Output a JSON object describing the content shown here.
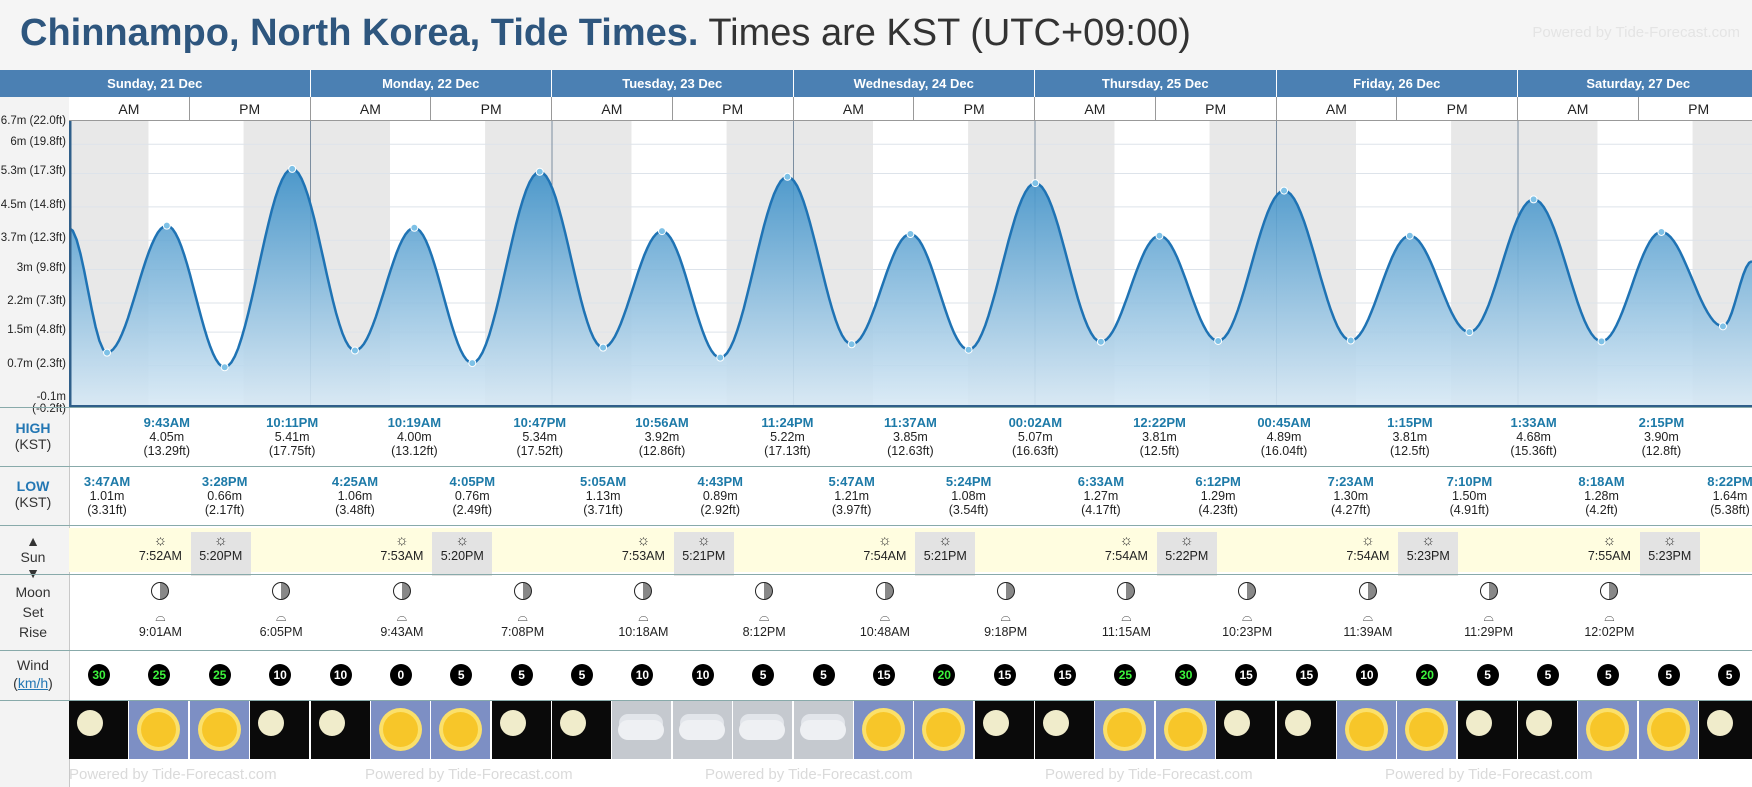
{
  "title": {
    "place": "Chinnampo, North Korea, Tide Times.",
    "tz": " Times are KST (UTC+09:00)"
  },
  "powered_by": "Powered by Tide-Forecast.com",
  "days": [
    "Sunday, 21 Dec",
    "Monday, 22 Dec",
    "Tuesday, 23 Dec",
    "Wednesday, 24 Dec",
    "Thursday, 25 Dec",
    "Friday, 26 Dec",
    "Saturday, 27 Dec"
  ],
  "ampm": {
    "am": "AM",
    "pm": "PM"
  },
  "y_axis": [
    "6.7m (22.0ft)",
    "6m (19.8ft)",
    "5.3m (17.3ft)",
    "4.5m (14.8ft)",
    "3.7m (12.3ft)",
    "3m (9.8ft)",
    "2.2m (7.3ft)",
    "1.5m (4.8ft)",
    "0.7m (2.3ft)",
    "-0.1m (-0.2ft)"
  ],
  "labels": {
    "high": "HIGH",
    "high_tz": "(KST)",
    "low": "LOW",
    "low_tz": "(KST)",
    "sun": "Sun",
    "moon": "Moon",
    "set": "Set",
    "rise": "Rise",
    "wind": "Wind",
    "wind_unit": "km/h"
  },
  "highs": [
    {
      "t": "9:43AM",
      "m": "4.05m",
      "ft": "(13.29ft)"
    },
    {
      "t": "10:11PM",
      "m": "5.41m",
      "ft": "(17.75ft)"
    },
    {
      "t": "10:19AM",
      "m": "4.00m",
      "ft": "(13.12ft)"
    },
    {
      "t": "10:47PM",
      "m": "5.34m",
      "ft": "(17.52ft)"
    },
    {
      "t": "10:56AM",
      "m": "3.92m",
      "ft": "(12.86ft)"
    },
    {
      "t": "11:24PM",
      "m": "5.22m",
      "ft": "(17.13ft)"
    },
    {
      "t": "11:37AM",
      "m": "3.85m",
      "ft": "(12.63ft)"
    },
    {
      "t": "00:02AM",
      "m": "5.07m",
      "ft": "(16.63ft)"
    },
    {
      "t": "12:22PM",
      "m": "3.81m",
      "ft": "(12.5ft)"
    },
    {
      "t": "00:45AM",
      "m": "4.89m",
      "ft": "(16.04ft)"
    },
    {
      "t": "1:15PM",
      "m": "3.81m",
      "ft": "(12.5ft)"
    },
    {
      "t": "1:33AM",
      "m": "4.68m",
      "ft": "(15.36ft)"
    },
    {
      "t": "2:15PM",
      "m": "3.90m",
      "ft": "(12.8ft)"
    }
  ],
  "lows": [
    {
      "t": "3:47AM",
      "m": "1.01m",
      "ft": "(3.31ft)"
    },
    {
      "t": "3:28PM",
      "m": "0.66m",
      "ft": "(2.17ft)"
    },
    {
      "t": "4:25AM",
      "m": "1.06m",
      "ft": "(3.48ft)"
    },
    {
      "t": "4:05PM",
      "m": "0.76m",
      "ft": "(2.49ft)"
    },
    {
      "t": "5:05AM",
      "m": "1.13m",
      "ft": "(3.71ft)"
    },
    {
      "t": "4:43PM",
      "m": "0.89m",
      "ft": "(2.92ft)"
    },
    {
      "t": "5:47AM",
      "m": "1.21m",
      "ft": "(3.97ft)"
    },
    {
      "t": "5:24PM",
      "m": "1.08m",
      "ft": "(3.54ft)"
    },
    {
      "t": "6:33AM",
      "m": "1.27m",
      "ft": "(4.17ft)"
    },
    {
      "t": "6:12PM",
      "m": "1.29m",
      "ft": "(4.23ft)"
    },
    {
      "t": "7:23AM",
      "m": "1.30m",
      "ft": "(4.27ft)"
    },
    {
      "t": "7:10PM",
      "m": "1.50m",
      "ft": "(4.91ft)"
    },
    {
      "t": "8:18AM",
      "m": "1.28m",
      "ft": "(4.2ft)"
    },
    {
      "t": "8:22PM",
      "m": "1.64m",
      "ft": "(5.38ft)"
    }
  ],
  "sun": [
    {
      "rise": "7:52AM",
      "set": "5:20PM"
    },
    {
      "rise": "7:53AM",
      "set": "5:20PM"
    },
    {
      "rise": "7:53AM",
      "set": "5:21PM"
    },
    {
      "rise": "7:54AM",
      "set": "5:21PM"
    },
    {
      "rise": "7:54AM",
      "set": "5:22PM"
    },
    {
      "rise": "7:54AM",
      "set": "5:23PM"
    },
    {
      "rise": "7:55AM",
      "set": "5:23PM"
    }
  ],
  "moon": [
    "9:01AM",
    "6:05PM",
    "9:43AM",
    "7:08PM",
    "10:18AM",
    "8:12PM",
    "10:48AM",
    "9:18PM",
    "11:15AM",
    "10:23PM",
    "11:39AM",
    "11:29PM",
    "12:02PM"
  ],
  "wind": [
    "30",
    "25",
    "25",
    "10",
    "10",
    "0",
    "5",
    "5",
    "5",
    "10",
    "10",
    "5",
    "5",
    "15",
    "20",
    "15",
    "15",
    "25",
    "30",
    "15",
    "15",
    "10",
    "20",
    "5",
    "5",
    "5",
    "5",
    "5"
  ],
  "weather": [
    "night",
    "day",
    "day",
    "night",
    "night",
    "day",
    "day",
    "night",
    "night",
    "cloud",
    "cloud",
    "cloud",
    "cloud",
    "day",
    "day",
    "night",
    "night",
    "day",
    "day",
    "night",
    "night",
    "day",
    "day",
    "night",
    "night",
    "day",
    "day",
    "night"
  ],
  "chart_data": {
    "type": "area",
    "title": "Chinnampo, North Korea, Tide Times.",
    "ylabel": "",
    "ylim": [
      -0.1,
      6.7
    ],
    "y_unit": "m",
    "series": [
      {
        "x": [
          "Sun 3:47AM",
          "Sun 9:43AM",
          "Sun 3:28PM",
          "Sun 10:11PM",
          "Mon 4:25AM",
          "Mon 10:19AM",
          "Mon 4:05PM",
          "Mon 10:47PM",
          "Tue 5:05AM",
          "Tue 10:56AM",
          "Tue 4:43PM",
          "Tue 11:24PM",
          "Wed 5:47AM",
          "Wed 11:37AM",
          "Wed 5:24PM",
          "Thu 00:02AM",
          "Thu 6:33AM",
          "Thu 12:22PM",
          "Thu 6:12PM",
          "Fri 00:45AM",
          "Fri 7:23AM",
          "Fri 1:15PM",
          "Fri 7:10PM",
          "Sat 1:33AM",
          "Sat 8:18AM",
          "Sat 2:15PM",
          "Sat 8:22PM"
        ],
        "values": [
          1.01,
          4.05,
          0.66,
          5.41,
          1.06,
          4.0,
          0.76,
          5.34,
          1.13,
          3.92,
          0.89,
          5.22,
          1.21,
          3.85,
          1.08,
          5.07,
          1.27,
          3.81,
          1.29,
          4.89,
          1.3,
          3.81,
          1.5,
          4.68,
          1.28,
          3.9,
          1.64
        ]
      }
    ]
  }
}
